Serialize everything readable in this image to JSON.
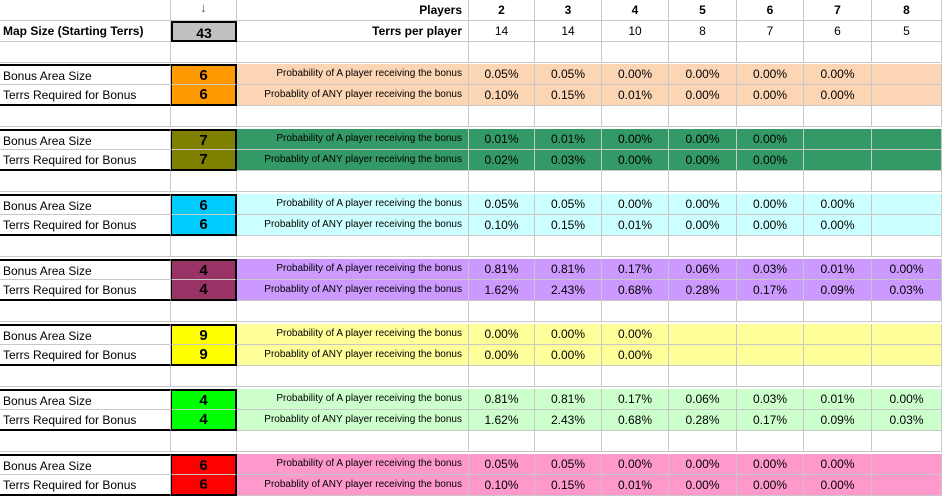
{
  "header": {
    "arrow": "↓",
    "players_label": "Players",
    "players": [
      "2",
      "3",
      "4",
      "5",
      "6",
      "7",
      "8"
    ],
    "map_size_label": "Map Size (Starting Terrs)",
    "map_size_value": "43",
    "terrs_per_player_label": "Terrs per player",
    "terrs_per_player": [
      "14",
      "14",
      "10",
      "8",
      "7",
      "6",
      "5"
    ]
  },
  "blocks": [
    {
      "accent": "#ff9900",
      "row_color": "#fcd5b4",
      "size_label": "Bonus Area Size",
      "size": "6",
      "req_label": "Terrs Required for Bonus",
      "req": "6",
      "desc_a": "Probability of A player receiving the bonus",
      "desc_any": "Probablity of ANY player receiving the bonus",
      "a": [
        "0.05%",
        "0.05%",
        "0.00%",
        "0.00%",
        "0.00%",
        "0.00%",
        ""
      ],
      "any": [
        "0.10%",
        "0.15%",
        "0.01%",
        "0.00%",
        "0.00%",
        "0.00%",
        ""
      ]
    },
    {
      "accent": "#808000",
      "row_color": "#339966",
      "size_label": "Bonus Area Size",
      "size": "7",
      "req_label": "Terrs Required for Bonus",
      "req": "7",
      "desc_a": "Probability of A player receiving the bonus",
      "desc_any": "Probablity of ANY player receiving the bonus",
      "a": [
        "0.01%",
        "0.01%",
        "0.00%",
        "0.00%",
        "0.00%",
        "",
        ""
      ],
      "any": [
        "0.02%",
        "0.03%",
        "0.00%",
        "0.00%",
        "0.00%",
        "",
        ""
      ]
    },
    {
      "accent": "#00ccff",
      "row_color": "#ccffff",
      "size_label": "Bonus Area Size",
      "size": "6",
      "req_label": "Terrs Required for Bonus",
      "req": "6",
      "desc_a": "Probability of A player receiving the bonus",
      "desc_any": "Probablity of ANY player receiving the bonus",
      "a": [
        "0.05%",
        "0.05%",
        "0.00%",
        "0.00%",
        "0.00%",
        "0.00%",
        ""
      ],
      "any": [
        "0.10%",
        "0.15%",
        "0.01%",
        "0.00%",
        "0.00%",
        "0.00%",
        ""
      ]
    },
    {
      "accent": "#993366",
      "row_color": "#cc99ff",
      "size_label": "Bonus Area Size",
      "size": "4",
      "req_label": "Terrs Required for Bonus",
      "req": "4",
      "desc_a": "Probability of A player receiving the bonus",
      "desc_any": "Probablity of ANY player receiving the bonus",
      "a": [
        "0.81%",
        "0.81%",
        "0.17%",
        "0.06%",
        "0.03%",
        "0.01%",
        "0.00%"
      ],
      "any": [
        "1.62%",
        "2.43%",
        "0.68%",
        "0.28%",
        "0.17%",
        "0.09%",
        "0.03%"
      ]
    },
    {
      "accent": "#ffff00",
      "row_color": "#ffff99",
      "size_label": "Bonus Area Size",
      "size": "9",
      "req_label": "Terrs Required for Bonus",
      "req": "9",
      "desc_a": "Probability of A player receiving the bonus",
      "desc_any": "Probablity of ANY player receiving the bonus",
      "a": [
        "0.00%",
        "0.00%",
        "0.00%",
        "",
        "",
        "",
        ""
      ],
      "any": [
        "0.00%",
        "0.00%",
        "0.00%",
        "",
        "",
        "",
        ""
      ]
    },
    {
      "accent": "#00ff00",
      "row_color": "#ccffcc",
      "size_label": "Bonus Area Size",
      "size": "4",
      "req_label": "Terrs Required for Bonus",
      "req": "4",
      "desc_a": "Probability of A player receiving the bonus",
      "desc_any": "Probablity of ANY player receiving the bonus",
      "a": [
        "0.81%",
        "0.81%",
        "0.17%",
        "0.06%",
        "0.03%",
        "0.01%",
        "0.00%"
      ],
      "any": [
        "1.62%",
        "2.43%",
        "0.68%",
        "0.28%",
        "0.17%",
        "0.09%",
        "0.03%"
      ]
    },
    {
      "accent": "#ff0000",
      "row_color": "#ff99cc",
      "size_label": "Bonus Area Size",
      "size": "6",
      "req_label": "Terrs Required for Bonus",
      "req": "6",
      "desc_a": "Probability of A player receiving the bonus",
      "desc_any": "Probablity of ANY player receiving the bonus",
      "a": [
        "0.05%",
        "0.05%",
        "0.00%",
        "0.00%",
        "0.00%",
        "0.00%",
        ""
      ],
      "any": [
        "0.10%",
        "0.15%",
        "0.01%",
        "0.00%",
        "0.00%",
        "0.00%",
        ""
      ]
    }
  ]
}
